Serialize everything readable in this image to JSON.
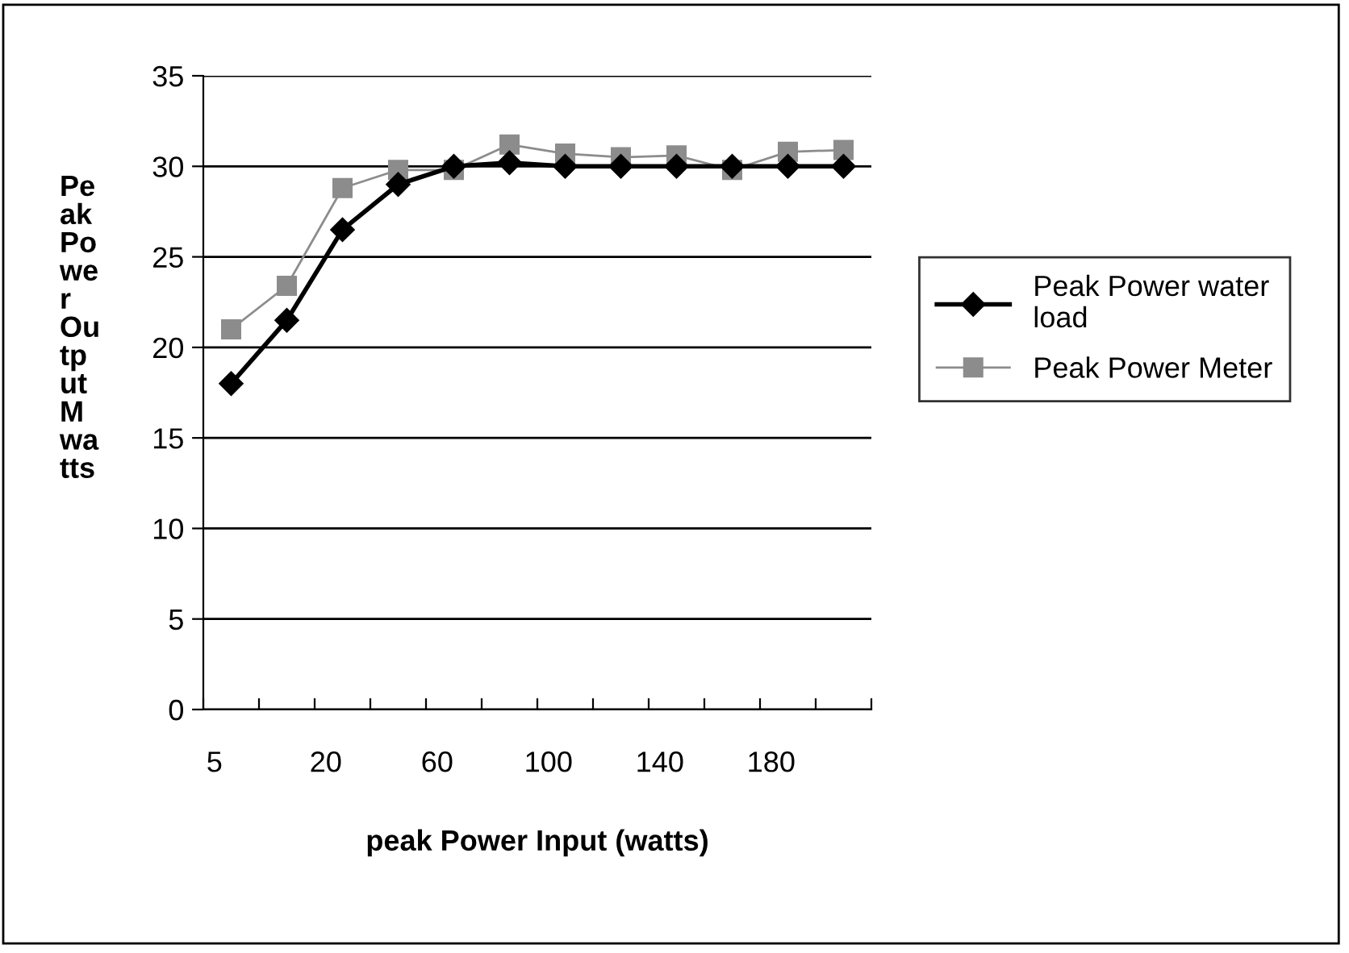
{
  "chart_data": {
    "type": "line",
    "xlabel": "peak Power Input (watts)",
    "ylabel": "Pe\nak\nPo\nwe\nr\nOu\ntp\nut\nM\nwa\ntts",
    "categories": [
      "5",
      null,
      "20",
      null,
      "60",
      null,
      "100",
      null,
      "140",
      null,
      "180",
      null
    ],
    "series": [
      {
        "name": "Peak Power water\nload",
        "color": "#000000",
        "marker": "diamond",
        "values": [
          18,
          21.5,
          26.5,
          29,
          30,
          30.2,
          30,
          30,
          30,
          30,
          30,
          30
        ]
      },
      {
        "name": "Peak Power Meter",
        "color": "#8c8c8c",
        "marker": "square",
        "values": [
          21,
          23.4,
          28.8,
          29.8,
          29.8,
          31.2,
          30.7,
          30.5,
          30.6,
          29.8,
          30.8,
          30.9
        ]
      }
    ],
    "ylim": [
      0,
      35
    ],
    "yticks": [
      0,
      5,
      10,
      15,
      20,
      25,
      30,
      35
    ],
    "grid": "y",
    "legend": "right",
    "line_style": "solid"
  }
}
